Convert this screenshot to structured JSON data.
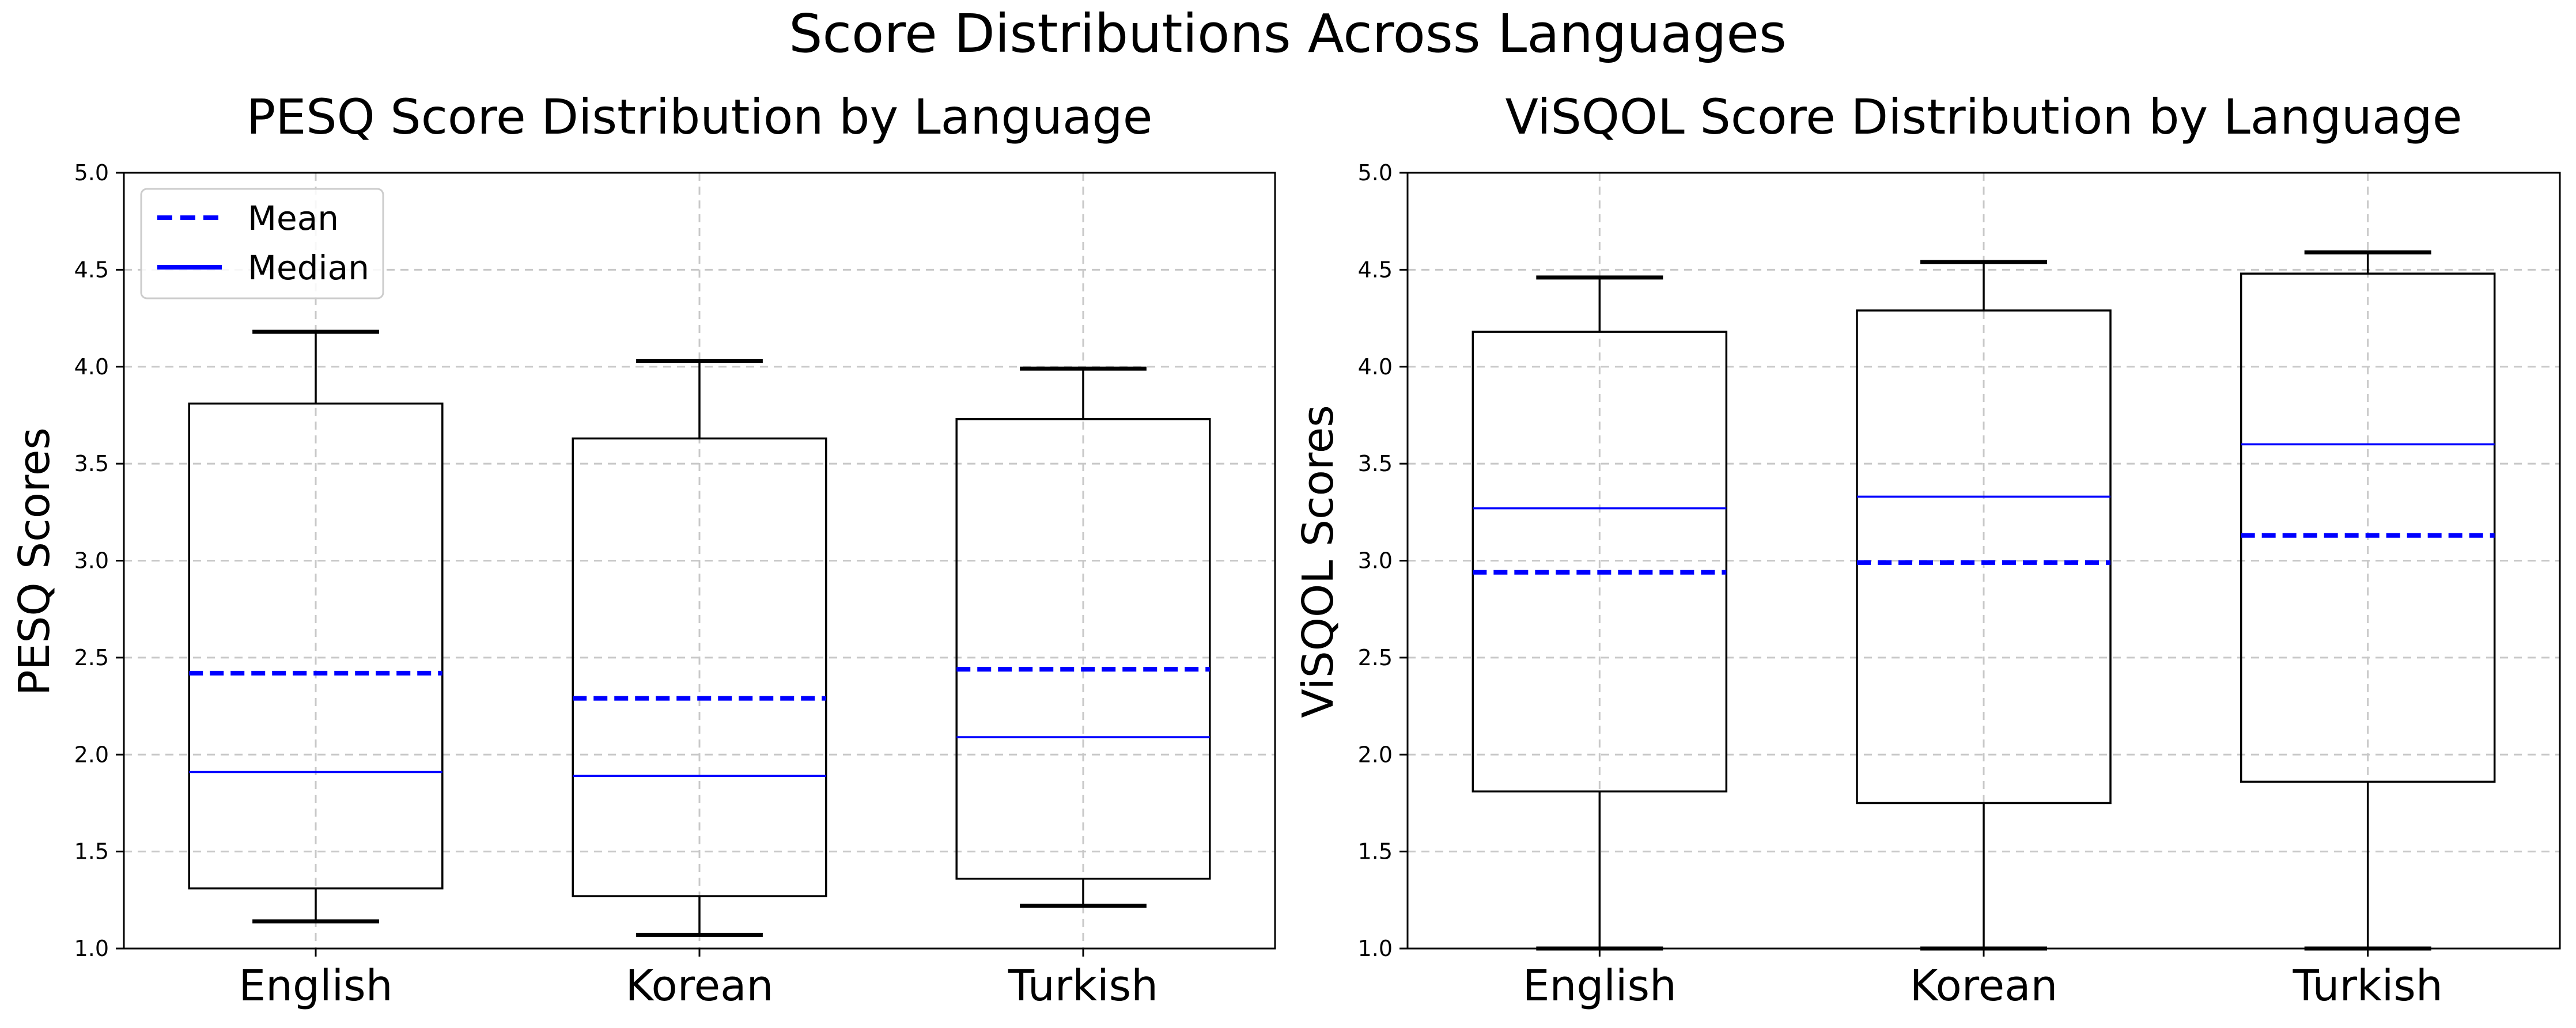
{
  "figure": {
    "suptitle": "Score Distributions Across Languages"
  },
  "colors": {
    "box": "#000000",
    "mean": "#0000ff",
    "median": "#0000ff",
    "grid": "#c8c8c8"
  },
  "chart_data": [
    {
      "type": "box",
      "title": "PESQ Score Distribution by Language",
      "xlabel": "",
      "ylabel": "PESQ Scores",
      "categories": [
        "English",
        "Korean",
        "Turkish"
      ],
      "ylim": [
        1.0,
        5.0
      ],
      "yticks": [
        "1.0",
        "1.5",
        "2.0",
        "2.5",
        "3.0",
        "3.5",
        "4.0",
        "4.5",
        "5.0"
      ],
      "grid": true,
      "legend": {
        "position": "top-left",
        "entries": [
          {
            "label": "Mean",
            "style": "dashed"
          },
          {
            "label": "Median",
            "style": "solid"
          }
        ]
      },
      "boxes": [
        {
          "category": "English",
          "whisker_low": 1.14,
          "q1": 1.31,
          "median": 1.91,
          "mean": 2.42,
          "q3": 3.81,
          "whisker_high": 4.18
        },
        {
          "category": "Korean",
          "whisker_low": 1.07,
          "q1": 1.27,
          "median": 1.89,
          "mean": 2.29,
          "q3": 3.63,
          "whisker_high": 4.03
        },
        {
          "category": "Turkish",
          "whisker_low": 1.22,
          "q1": 1.36,
          "median": 2.09,
          "mean": 2.44,
          "q3": 3.73,
          "whisker_high": 3.99
        }
      ]
    },
    {
      "type": "box",
      "title": "ViSQOL Score Distribution by Language",
      "xlabel": "",
      "ylabel": "ViSQOL Scores",
      "categories": [
        "English",
        "Korean",
        "Turkish"
      ],
      "ylim": [
        1.0,
        5.0
      ],
      "yticks": [
        "1.0",
        "1.5",
        "2.0",
        "2.5",
        "3.0",
        "3.5",
        "4.0",
        "4.5",
        "5.0"
      ],
      "grid": true,
      "boxes": [
        {
          "category": "English",
          "whisker_low": 1.0,
          "q1": 1.81,
          "median": 3.27,
          "mean": 2.94,
          "q3": 4.18,
          "whisker_high": 4.46
        },
        {
          "category": "Korean",
          "whisker_low": 1.0,
          "q1": 1.75,
          "median": 3.33,
          "mean": 2.99,
          "q3": 4.29,
          "whisker_high": 4.54
        },
        {
          "category": "Turkish",
          "whisker_low": 1.0,
          "q1": 1.86,
          "median": 3.6,
          "mean": 3.13,
          "q3": 4.48,
          "whisker_high": 4.59
        }
      ]
    }
  ]
}
